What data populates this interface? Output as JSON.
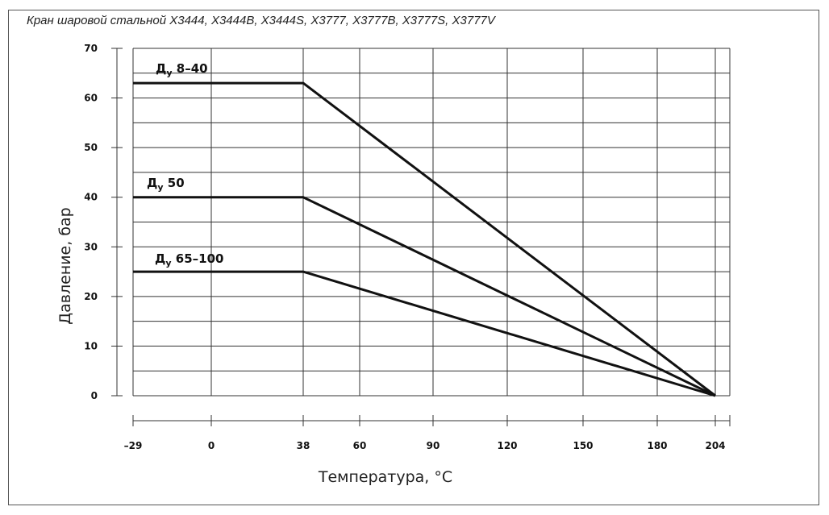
{
  "chart_data": {
    "type": "line",
    "title": "Кран шаровой стальной X3444, X3444B, X3444S, X3777, X3777B, X3777S, X3777V",
    "xlabel": "Температура, °С",
    "ylabel": "Давление, бар",
    "x_ticks": [
      -29,
      0,
      38,
      60,
      90,
      120,
      150,
      180,
      204
    ],
    "x_tick_labels": [
      "–29",
      "0",
      "38",
      "60",
      "90",
      "120",
      "150",
      "180",
      "204"
    ],
    "y_ticks": [
      0,
      10,
      20,
      30,
      40,
      50,
      60,
      70
    ],
    "y_tick_labels": [
      "0",
      "10",
      "20",
      "30",
      "40",
      "50",
      "60",
      "70"
    ],
    "xlim": [
      -29,
      204
    ],
    "ylim": [
      0,
      70
    ],
    "grid": true,
    "series": [
      {
        "name": "Д",
        "name_sub": "у",
        "name_rest": " 8–40",
        "points": [
          [
            -29,
            63
          ],
          [
            38,
            63
          ],
          [
            204,
            0
          ]
        ]
      },
      {
        "name": "Д",
        "name_sub": "у",
        "name_rest": " 50",
        "points": [
          [
            -29,
            40
          ],
          [
            38,
            40
          ],
          [
            204,
            0
          ]
        ]
      },
      {
        "name": "Д",
        "name_sub": "у",
        "name_rest": " 65–100",
        "points": [
          [
            -29,
            25
          ],
          [
            38,
            25
          ],
          [
            204,
            0
          ]
        ]
      }
    ]
  }
}
